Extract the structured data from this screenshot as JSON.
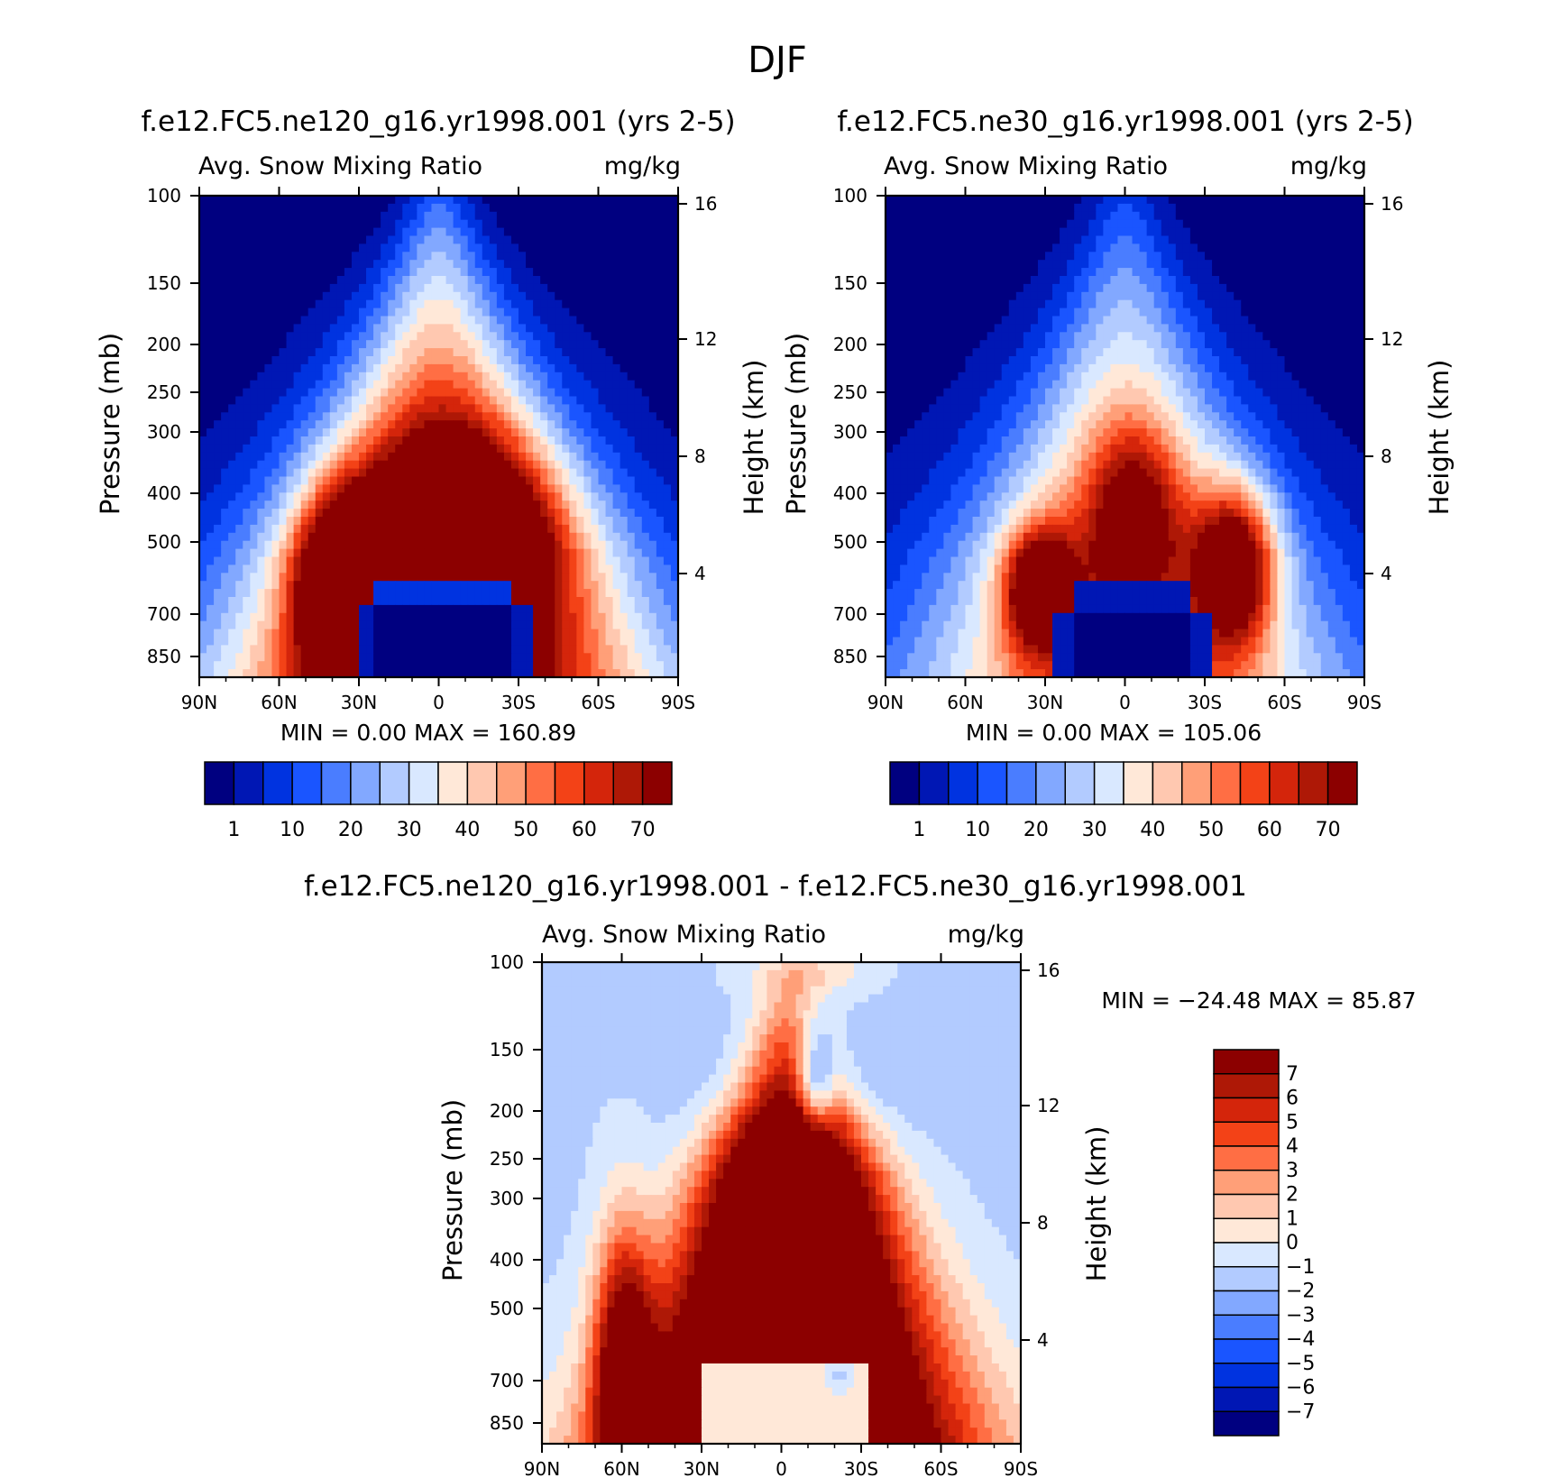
{
  "figure": {
    "title": "DJF"
  },
  "colors": {
    "scale": [
      "#000080",
      "#0017b4",
      "#0033e0",
      "#1a55ff",
      "#4a7dff",
      "#82a8ff",
      "#b2cbff",
      "#d9e8ff",
      "#ffe8d8",
      "#ffc8b0",
      "#ff9f78",
      "#ff6e44",
      "#f34217",
      "#d4250b",
      "#ae1806",
      "#8c0000"
    ],
    "frame": "#000000"
  },
  "chart_data": [
    {
      "id": "panel-ne120",
      "type": "heatmap",
      "title": "f.e12.FC5.ne120_g16.yr1998.001 (yrs 2-5)",
      "subtitle_left": "Avg. Snow Mixing Ratio",
      "subtitle_right": "mg/kg",
      "xlabel": "",
      "ylabel": "Pressure (mb)",
      "y2label": "Height (km)",
      "x_ticks": [
        "90N",
        "60N",
        "30N",
        "0",
        "30S",
        "60S",
        "90S"
      ],
      "y_ticks": [
        "100",
        "150",
        "200",
        "250",
        "300",
        "400",
        "500",
        "700",
        "850"
      ],
      "y2_ticks": [
        "16",
        "12",
        "8",
        "4"
      ],
      "ylim": [
        850,
        100
      ],
      "minmax": "MIN =    0.00   MAX =  160.89",
      "colorbar_labels": [
        "1",
        "10",
        "20",
        "30",
        "40",
        "50",
        "60",
        "70"
      ],
      "levels": [
        1,
        5,
        10,
        15,
        20,
        25,
        30,
        35,
        40,
        45,
        50,
        55,
        60,
        65,
        70
      ]
    },
    {
      "id": "panel-ne30",
      "type": "heatmap",
      "title": "f.e12.FC5.ne30_g16.yr1998.001 (yrs 2-5)",
      "subtitle_left": "Avg. Snow Mixing Ratio",
      "subtitle_right": "mg/kg",
      "xlabel": "",
      "ylabel": "Pressure (mb)",
      "y2label": "Height (km)",
      "x_ticks": [
        "90N",
        "60N",
        "30N",
        "0",
        "30S",
        "60S",
        "90S"
      ],
      "y_ticks": [
        "100",
        "150",
        "200",
        "250",
        "300",
        "400",
        "500",
        "700",
        "850"
      ],
      "y2_ticks": [
        "16",
        "12",
        "8",
        "4"
      ],
      "ylim": [
        850,
        100
      ],
      "minmax": "MIN =    0.00   MAX =  105.06",
      "colorbar_labels": [
        "1",
        "10",
        "20",
        "30",
        "40",
        "50",
        "60",
        "70"
      ],
      "levels": [
        1,
        5,
        10,
        15,
        20,
        25,
        30,
        35,
        40,
        45,
        50,
        55,
        60,
        65,
        70
      ]
    },
    {
      "id": "panel-diff",
      "type": "heatmap",
      "title": "f.e12.FC5.ne120_g16.yr1998.001 - f.e12.FC5.ne30_g16.yr1998.001",
      "subtitle_left": "Avg. Snow Mixing Ratio",
      "subtitle_right": "mg/kg",
      "xlabel": "",
      "ylabel": "Pressure (mb)",
      "y2label": "Height (km)",
      "x_ticks": [
        "90N",
        "60N",
        "30N",
        "0",
        "30S",
        "60S",
        "90S"
      ],
      "y_ticks": [
        "100",
        "150",
        "200",
        "250",
        "300",
        "400",
        "500",
        "700",
        "850"
      ],
      "y2_ticks": [
        "16",
        "12",
        "8",
        "4"
      ],
      "ylim": [
        850,
        100
      ],
      "minmax": "MIN = −24.48   MAX =   85.87",
      "colorbar_labels": [
        "7",
        "6",
        "5",
        "4",
        "3",
        "2",
        "1",
        "0",
        "−1",
        "−2",
        "−3",
        "−4",
        "−5",
        "−6",
        "−7"
      ],
      "levels": [
        -7,
        -6,
        -5,
        -4,
        -3,
        -2,
        -1,
        0,
        1,
        2,
        3,
        4,
        5,
        6,
        7
      ]
    }
  ]
}
